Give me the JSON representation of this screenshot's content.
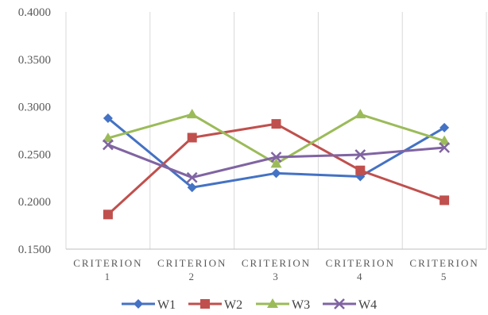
{
  "chart_data": {
    "type": "line",
    "title": "",
    "xlabel": "",
    "ylabel": "",
    "categories": [
      [
        "CRITERION",
        "1"
      ],
      [
        "CRITERION",
        "2"
      ],
      [
        "CRITERION",
        "3"
      ],
      [
        "CRITERION",
        "4"
      ],
      [
        "CRITERION",
        "5"
      ]
    ],
    "yticks": [
      "0.1500",
      "0.2000",
      "0.2500",
      "0.3000",
      "0.3500",
      "0.4000"
    ],
    "ylim": [
      0.15,
      0.4
    ],
    "grid": "vertical",
    "legend": "bottom",
    "series": [
      {
        "name": "W1",
        "color": "#4472C4",
        "marker": "diamond",
        "values": [
          0.288,
          0.215,
          0.23,
          0.2265,
          0.278
        ]
      },
      {
        "name": "W2",
        "color": "#C0504D",
        "marker": "square",
        "values": [
          0.1865,
          0.2675,
          0.282,
          0.233,
          0.2015
        ]
      },
      {
        "name": "W3",
        "color": "#9BBB59",
        "marker": "triangle",
        "values": [
          0.267,
          0.292,
          0.24,
          0.292,
          0.264
        ]
      },
      {
        "name": "W4",
        "color": "#8064A2",
        "marker": "x",
        "values": [
          0.26,
          0.2255,
          0.247,
          0.2495,
          0.257
        ]
      }
    ]
  }
}
